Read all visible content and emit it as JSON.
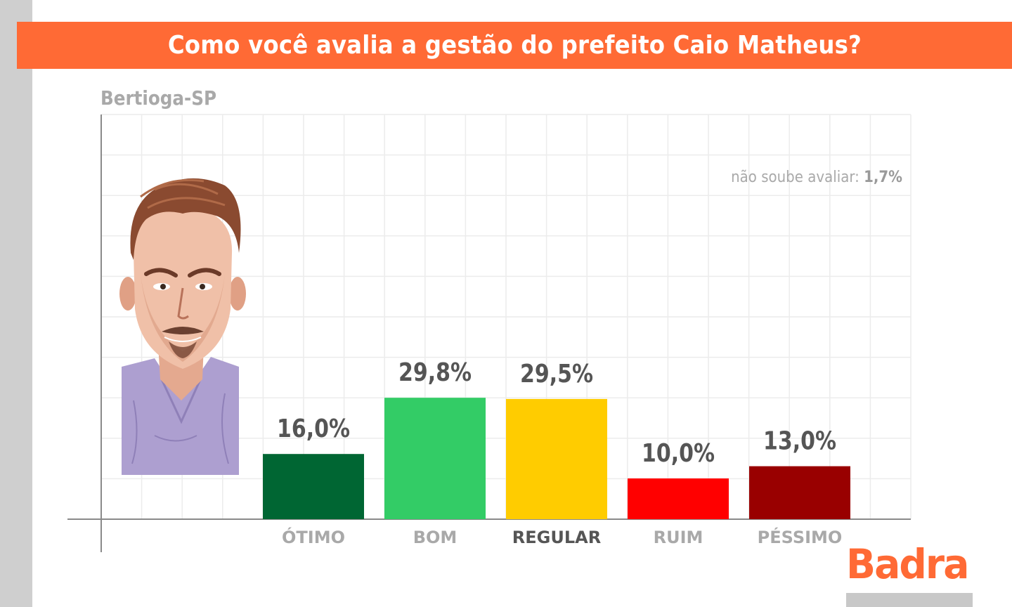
{
  "header": {
    "title": "Como você avalia a gestão do prefeito Caio Matheus?",
    "subtitle": "Bertioga-SP"
  },
  "note": {
    "label": "não soube avaliar: ",
    "value": "1,7%"
  },
  "brand": {
    "name": "Badra",
    "color": "#ff6a35"
  },
  "colors": {
    "banner": "#ff6a35",
    "strip": "#cfcfcf",
    "grid": "#ececec",
    "axis": "#8a8a8a"
  },
  "illustration": {
    "icon": "caricature-portrait-icon"
  },
  "chart_data": {
    "type": "bar",
    "title": "Como você avalia a gestão do prefeito Caio Matheus?",
    "subtitle": "Bertioga-SP",
    "categories": [
      "ÓTIMO",
      "BOM",
      "REGULAR",
      "RUIM",
      "PÉSSIMO"
    ],
    "values": [
      16.0,
      29.8,
      29.5,
      10.0,
      13.0
    ],
    "value_labels": [
      "16,0%",
      "29,8%",
      "29,5%",
      "10,0%",
      "13,0%"
    ],
    "colors": [
      "#006633",
      "#33cc66",
      "#ffcc00",
      "#ff0000",
      "#990000"
    ],
    "ylim": [
      0,
      100
    ],
    "grid": true,
    "xlabel": "",
    "ylabel": ""
  }
}
